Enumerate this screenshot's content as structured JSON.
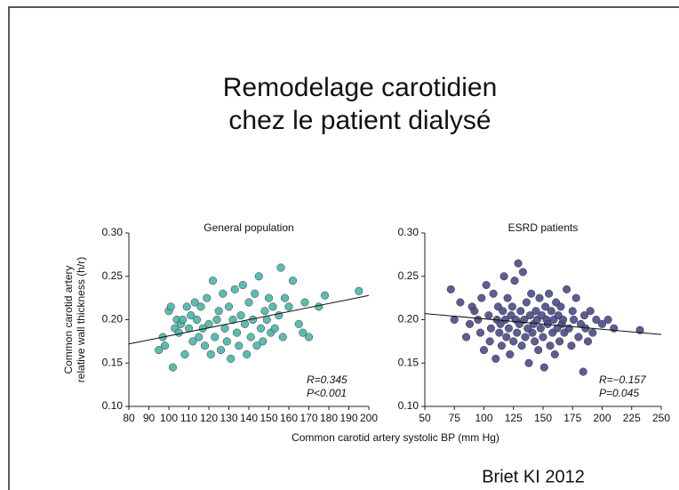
{
  "title": [
    "Remodelage carotidien",
    "chez le patient dialysé"
  ],
  "xlabel": "Common carotid artery systolic BP (mm Hg)",
  "footer": "Briet KI 2012",
  "chart_data": [
    {
      "type": "scatter",
      "title": "General population",
      "color": "#4ab5a8",
      "ylabel": [
        "Common carotid artery",
        "relative wall thickness (h/r)"
      ],
      "xlim": [
        80,
        200
      ],
      "xticks": [
        80,
        90,
        100,
        110,
        120,
        130,
        140,
        150,
        160,
        170,
        180,
        190,
        200
      ],
      "ylim": [
        0.1,
        0.3
      ],
      "yticks": [
        {
          "value": 0.1,
          "label": "0.10"
        },
        0.15,
        {
          "value": 0.2,
          "label": "0.20"
        },
        0.25,
        {
          "value": 0.3,
          "label": "0.30"
        }
      ],
      "annotations": [
        "R=0.345",
        "P<0.001"
      ],
      "trendline": {
        "x": [
          80,
          200
        ],
        "y": [
          0.172,
          0.228
        ]
      },
      "x": [
        95,
        97,
        98,
        100,
        101,
        102,
        103,
        104,
        105,
        106,
        107,
        108,
        109,
        110,
        111,
        112,
        113,
        114,
        115,
        116,
        117,
        118,
        119,
        120,
        121,
        122,
        123,
        124,
        125,
        126,
        127,
        128,
        129,
        130,
        131,
        132,
        133,
        134,
        135,
        136,
        137,
        138,
        139,
        140,
        141,
        142,
        143,
        144,
        145,
        146,
        147,
        148,
        149,
        150,
        151,
        152,
        153,
        155,
        156,
        157,
        158,
        160,
        162,
        165,
        167,
        168,
        170,
        175,
        178,
        195
      ],
      "values": [
        0.165,
        0.18,
        0.17,
        0.21,
        0.215,
        0.145,
        0.19,
        0.2,
        0.185,
        0.195,
        0.2,
        0.16,
        0.215,
        0.19,
        0.205,
        0.175,
        0.22,
        0.2,
        0.18,
        0.215,
        0.19,
        0.17,
        0.225,
        0.195,
        0.16,
        0.245,
        0.18,
        0.2,
        0.21,
        0.165,
        0.23,
        0.19,
        0.175,
        0.215,
        0.155,
        0.2,
        0.235,
        0.185,
        0.17,
        0.205,
        0.24,
        0.195,
        0.16,
        0.22,
        0.18,
        0.2,
        0.23,
        0.17,
        0.25,
        0.19,
        0.175,
        0.21,
        0.2,
        0.225,
        0.185,
        0.215,
        0.19,
        0.205,
        0.26,
        0.18,
        0.225,
        0.215,
        0.245,
        0.195,
        0.185,
        0.22,
        0.18,
        0.215,
        0.228,
        0.233
      ]
    },
    {
      "type": "scatter",
      "title": "ESRD patients",
      "color": "#4d4a8a",
      "xlim": [
        50,
        250
      ],
      "xticks": [
        50,
        75,
        100,
        125,
        150,
        175,
        200,
        225,
        250
      ],
      "ylim": [
        0.1,
        0.3
      ],
      "yticks": [
        {
          "value": 0.1,
          "label": "0.10"
        },
        0.15,
        {
          "value": 0.2,
          "label": "0.20"
        },
        0.25,
        {
          "value": 0.3,
          "label": "0.30"
        }
      ],
      "annotations": [
        "R=−0.157",
        "P=0.045"
      ],
      "trendline": {
        "x": [
          50,
          250
        ],
        "y": [
          0.207,
          0.183
        ]
      },
      "x": [
        72,
        75,
        80,
        85,
        88,
        90,
        92,
        95,
        97,
        98,
        100,
        102,
        104,
        105,
        106,
        108,
        110,
        111,
        112,
        113,
        114,
        115,
        116,
        117,
        118,
        119,
        120,
        121,
        122,
        123,
        124,
        125,
        126,
        127,
        128,
        129,
        130,
        131,
        132,
        133,
        134,
        135,
        136,
        137,
        138,
        139,
        140,
        141,
        142,
        143,
        144,
        145,
        146,
        147,
        148,
        149,
        150,
        151,
        152,
        153,
        154,
        155,
        156,
        157,
        158,
        159,
        160,
        161,
        162,
        163,
        164,
        165,
        166,
        167,
        168,
        170,
        172,
        174,
        175,
        176,
        178,
        180,
        182,
        184,
        185,
        186,
        188,
        190,
        192,
        195,
        200,
        205,
        210,
        232
      ],
      "values": [
        0.235,
        0.2,
        0.22,
        0.18,
        0.195,
        0.215,
        0.21,
        0.2,
        0.185,
        0.225,
        0.165,
        0.24,
        0.205,
        0.175,
        0.19,
        0.23,
        0.155,
        0.2,
        0.215,
        0.185,
        0.195,
        0.17,
        0.21,
        0.25,
        0.2,
        0.18,
        0.225,
        0.19,
        0.16,
        0.205,
        0.215,
        0.175,
        0.245,
        0.2,
        0.185,
        0.265,
        0.195,
        0.21,
        0.17,
        0.255,
        0.2,
        0.18,
        0.22,
        0.19,
        0.15,
        0.205,
        0.23,
        0.185,
        0.195,
        0.175,
        0.21,
        0.2,
        0.165,
        0.225,
        0.19,
        0.205,
        0.18,
        0.145,
        0.215,
        0.2,
        0.195,
        0.23,
        0.17,
        0.21,
        0.185,
        0.2,
        0.16,
        0.22,
        0.19,
        0.205,
        0.175,
        0.215,
        0.195,
        0.2,
        0.185,
        0.235,
        0.19,
        0.17,
        0.21,
        0.2,
        0.225,
        0.18,
        0.195,
        0.14,
        0.205,
        0.19,
        0.175,
        0.21,
        0.185,
        0.2,
        0.195,
        0.2,
        0.19,
        0.188
      ]
    }
  ]
}
